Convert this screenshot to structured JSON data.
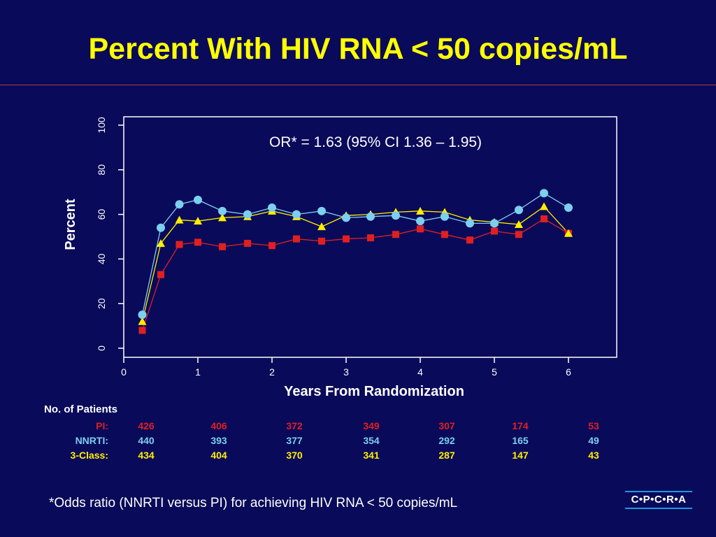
{
  "slide": {
    "title": "Percent With HIV RNA < 50 copies/mL",
    "footnote": "*Odds ratio (NNRTI versus PI) for achieving HIV RNA < 50 copies/mL",
    "logo": "C•P•C•R•A"
  },
  "colors": {
    "background": "#0a0a5a",
    "title": "#ffff00",
    "pi": "#e02020",
    "nnrti": "#7ccfee",
    "three_class": "#ffee00",
    "rule": "#b04030"
  },
  "chart_data": {
    "type": "line",
    "title": "",
    "xlabel": "Years From Randomization",
    "ylabel": "Percent",
    "xlim": [
      0,
      6.5
    ],
    "ylim": [
      0,
      100
    ],
    "xticks": [
      0,
      1,
      2,
      3,
      4,
      5,
      6
    ],
    "yticks": [
      0,
      20,
      40,
      60,
      80,
      100
    ],
    "grid": false,
    "annotation": "OR*  = 1.63 (95% CI 1.36 – 1.95)",
    "x": [
      0.25,
      0.5,
      0.75,
      1.0,
      1.33,
      1.67,
      2.0,
      2.33,
      2.67,
      3.0,
      3.33,
      3.67,
      4.0,
      4.33,
      4.67,
      5.0,
      5.33,
      5.67,
      6.0
    ],
    "series": [
      {
        "name": "PI",
        "marker": "square",
        "color": "#e02020",
        "values": [
          8,
          33,
          46.5,
          47.5,
          45.5,
          47,
          46,
          49,
          48,
          49,
          49.5,
          51,
          53.5,
          51,
          48.5,
          52.5,
          51,
          58,
          51.5
        ]
      },
      {
        "name": "NNRTI",
        "marker": "circle",
        "color": "#7ccfee",
        "values": [
          15,
          54,
          64.5,
          66.5,
          61.5,
          60,
          63,
          60,
          61.5,
          58.5,
          59,
          59.5,
          57,
          59,
          56,
          56,
          62,
          69.5,
          63
        ]
      },
      {
        "name": "3-Class",
        "marker": "triangle",
        "color": "#ffee00",
        "values": [
          12,
          47,
          57.5,
          57,
          58.5,
          59,
          61.5,
          59,
          54.5,
          59.5,
          60,
          61,
          61.5,
          61,
          57.5,
          56.5,
          55.5,
          63.5,
          51.5
        ]
      }
    ],
    "patients": {
      "heading": "No. of Patients",
      "x": [
        0.25,
        1.25,
        2.25,
        3.25,
        4.25,
        5.25,
        6.25
      ],
      "rows": [
        {
          "label": "PI:",
          "color": "#e02020",
          "values": [
            "426",
            "406",
            "372",
            "349",
            "307",
            "174",
            "53"
          ]
        },
        {
          "label": "NNRTI:",
          "color": "#7ccfee",
          "values": [
            "440",
            "393",
            "377",
            "354",
            "292",
            "165",
            "49"
          ]
        },
        {
          "label": "3-Class:",
          "color": "#ffee00",
          "values": [
            "434",
            "404",
            "370",
            "341",
            "287",
            "147",
            "43"
          ]
        }
      ]
    }
  }
}
